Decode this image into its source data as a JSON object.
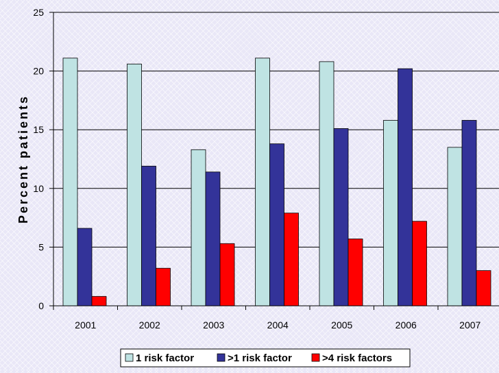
{
  "chart_data": {
    "type": "bar",
    "categories": [
      "2001",
      "2002",
      "2003",
      "2004",
      "2005",
      "2006",
      "2007"
    ],
    "series": [
      {
        "name": "1 risk factor",
        "color": "#bfe3e3",
        "values": [
          21.1,
          20.6,
          13.3,
          21.1,
          20.8,
          15.8,
          13.5
        ]
      },
      {
        "name": ">1 risk factor",
        "color": "#333399",
        "values": [
          6.6,
          11.9,
          11.4,
          13.8,
          15.1,
          20.2,
          15.8
        ]
      },
      {
        "name": ">4 risk factors",
        "color": "#ff0000",
        "values": [
          0.8,
          3.2,
          5.3,
          7.9,
          5.7,
          7.2,
          3.0
        ]
      }
    ],
    "ylabel": "Percent patients",
    "xlabel": "",
    "ylim": [
      0,
      25
    ],
    "yticks": [
      0,
      5,
      10,
      15,
      20,
      25
    ],
    "grid": true,
    "legend_position": "bottom"
  }
}
